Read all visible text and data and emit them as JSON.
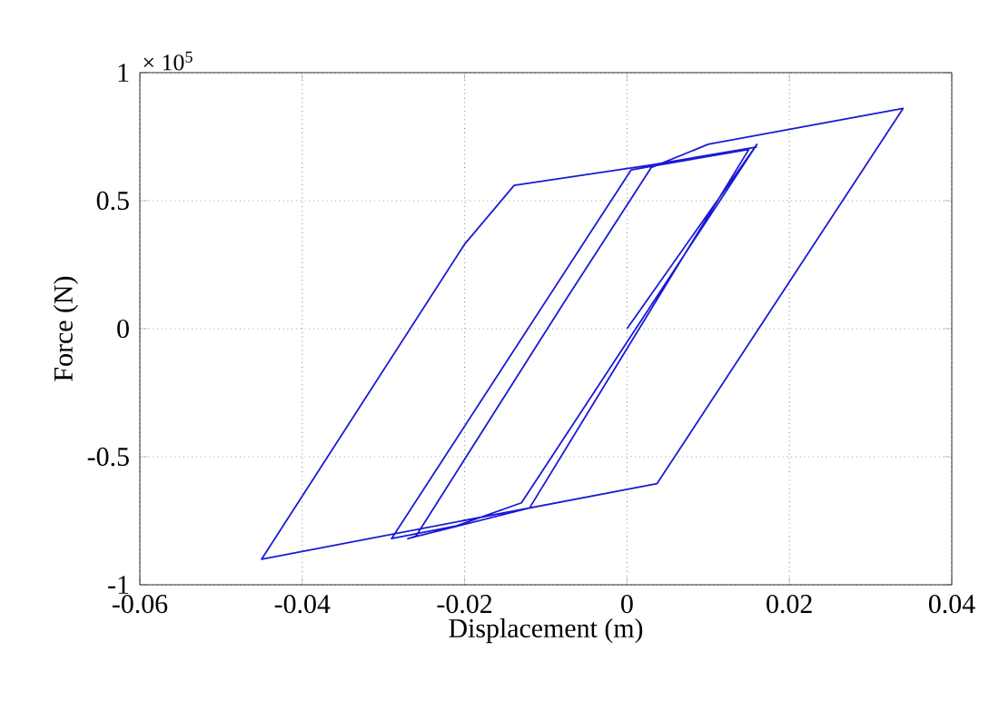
{
  "chart_data": {
    "type": "line",
    "xlabel": "Displacement (m)",
    "ylabel": "Force (N)",
    "annotations": [
      "× 10$^{5}$"
    ],
    "xlim": [
      -0.06,
      0.04
    ],
    "ylim": [
      -1,
      1
    ],
    "xticks": [
      -0.06,
      -0.04,
      -0.02,
      0,
      0.02,
      0.04
    ],
    "yticks": [
      -1,
      -0.5,
      0,
      0.5,
      1
    ],
    "grid": true,
    "marker": "none",
    "line_style": "solid",
    "series": [
      {
        "color": "#1a1ad6",
        "x": [
          0,
          0.016,
          -0.013,
          -0.021,
          -0.029,
          0.0005,
          0.004,
          0.015,
          -0.012,
          -0.027,
          -0.026,
          -0.0078,
          0.003,
          0.01,
          0.034,
          0.0037,
          -0.045,
          -0.02,
          -0.0139,
          0.003,
          0.016
        ],
        "values": [
          0,
          0.72,
          -0.68,
          -0.77,
          -0.82,
          0.62,
          0.64,
          0.7,
          -0.7,
          -0.82,
          -0.81,
          0.1,
          0.63,
          0.72,
          0.86,
          -0.605,
          -0.9,
          0.33,
          0.56,
          0.64,
          0.71
        ]
      }
    ]
  }
}
